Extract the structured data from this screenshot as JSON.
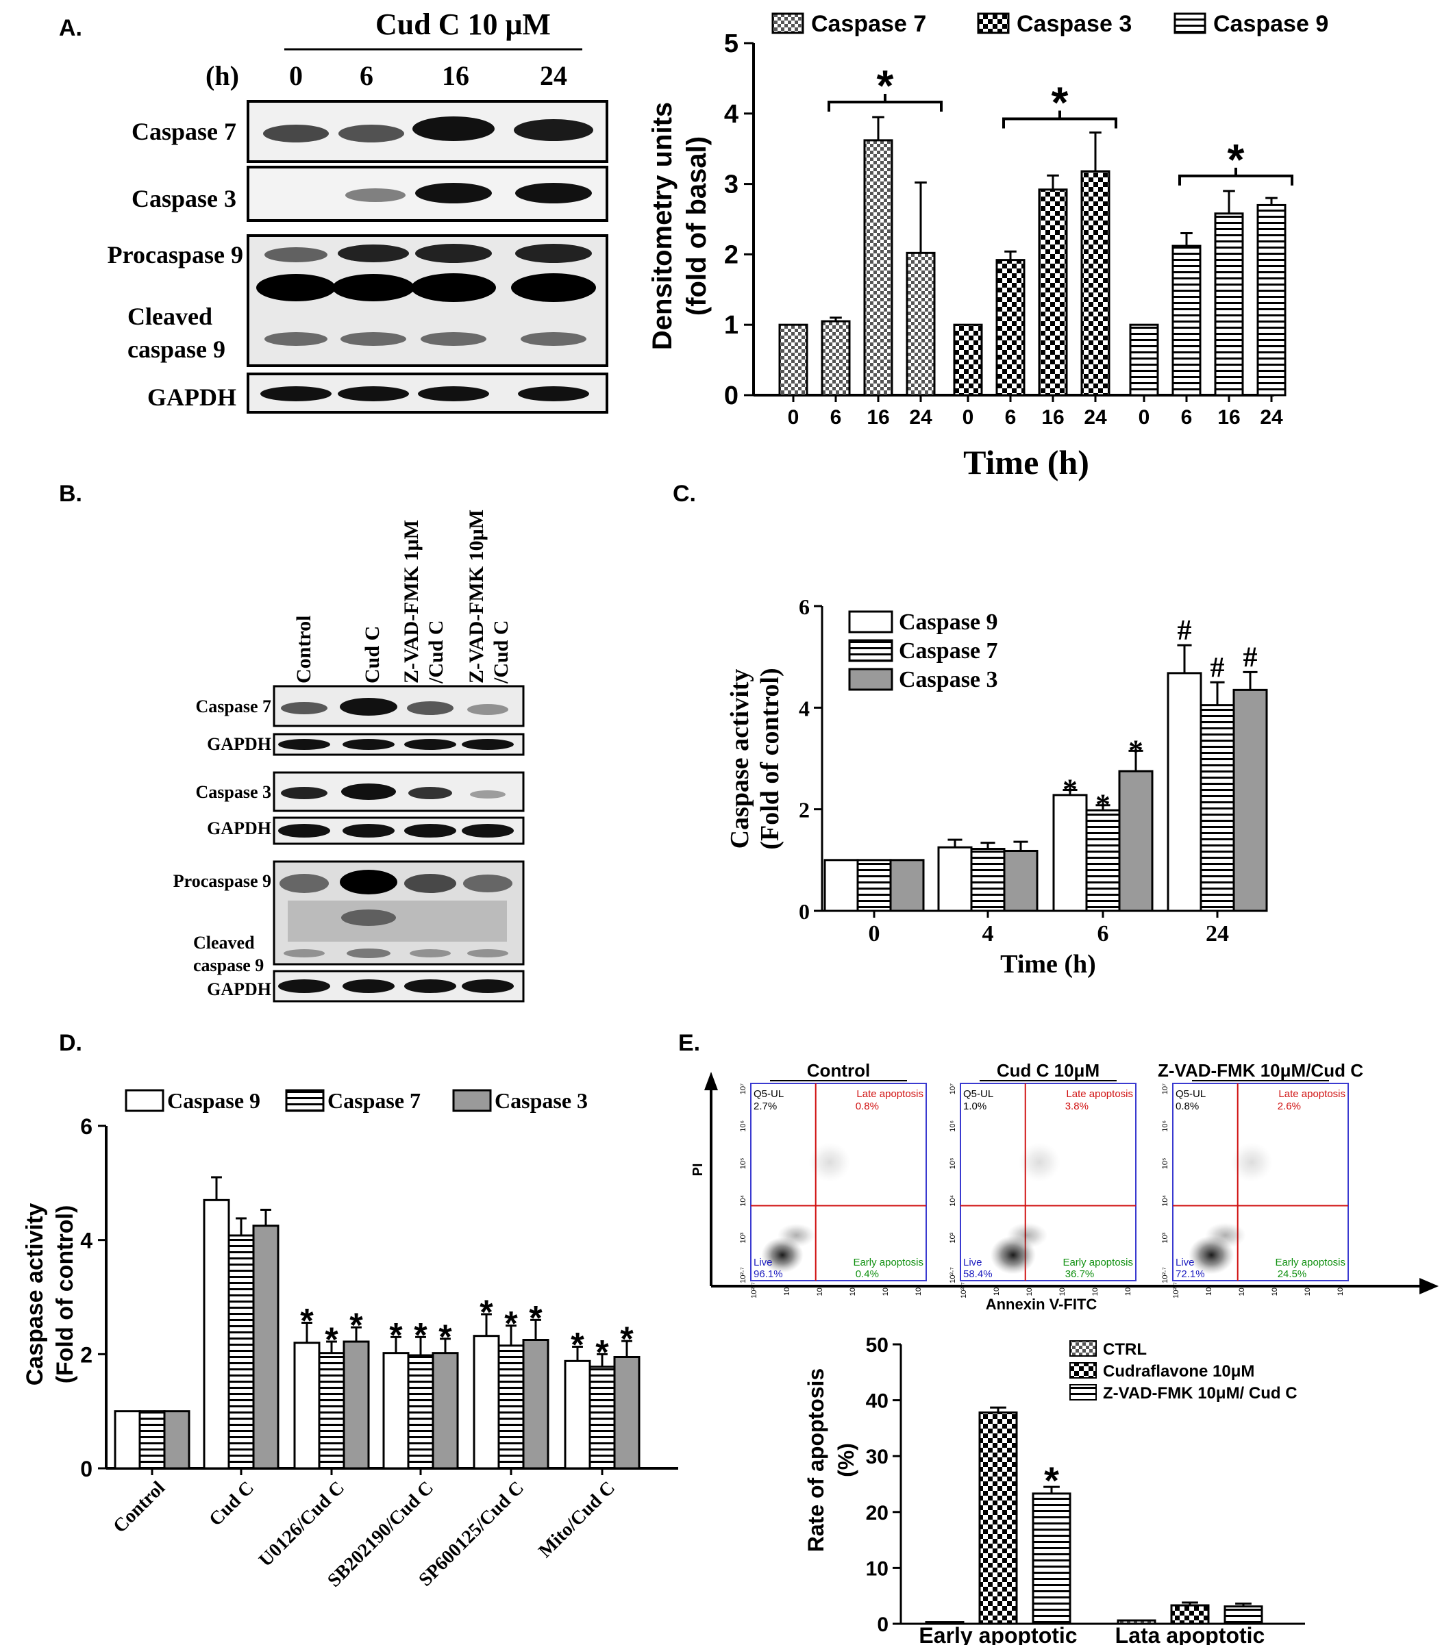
{
  "panels": {
    "a": {
      "label": "A.",
      "treatment": "Cud C 10 μM",
      "time_unit": "(h)",
      "lanes": [
        "0",
        "6",
        "16",
        "24"
      ],
      "rows": [
        "Caspase 7",
        "Caspase 3",
        "Procaspase 9",
        "Cleaved",
        "caspase 9",
        "GAPDH"
      ]
    },
    "b": {
      "label": "B.",
      "lanes": [
        "Control",
        "Cud C",
        "Z-VAD-FMK 1μM",
        "/Cud C",
        "Z-VAD-FMK 10μM",
        "/Cud C"
      ],
      "rows": [
        "Caspase 7",
        "GAPDH",
        "Caspase 3",
        "GAPDH",
        "Procaspase 9",
        "Cleaved",
        "caspase 9",
        "GAPDH"
      ]
    },
    "c": {
      "label": "C."
    },
    "d": {
      "label": "D."
    },
    "e": {
      "label": "E.",
      "flow": {
        "x_axis": "Annexin V-FITC",
        "y_axis": "PI",
        "quadrant_labels": {
          "ul": "Q5-UL",
          "ur": "Late apoptosis",
          "ll": "Live",
          "lr": "Early apoptosis"
        },
        "ticks": [
          "10²·⁷",
          "10³",
          "10⁴",
          "10⁵",
          "10⁶",
          "10⁷"
        ],
        "plots": [
          {
            "title": "Control",
            "ul": "2.7%",
            "ur": "0.8%",
            "ll": "96.1%",
            "lr": "0.4%"
          },
          {
            "title": "Cud C  10μM",
            "ul": "1.0%",
            "ur": "3.8%",
            "ll": "58.4%",
            "lr": "36.7%"
          },
          {
            "title": "Z-VAD-FMK 10μM/Cud C",
            "ul": "0.8%",
            "ur": "2.6%",
            "ll": "72.1%",
            "lr": "24.5%"
          }
        ]
      }
    }
  },
  "chart_data": [
    {
      "id": "A",
      "type": "bar",
      "groups": [
        "Caspase 7",
        "Caspase 3",
        "Caspase 9"
      ],
      "categories": [
        "0",
        "6",
        "16",
        "24"
      ],
      "series": [
        {
          "name": "Caspase 7",
          "values": [
            1.0,
            1.05,
            3.62,
            2.02
          ],
          "errors": [
            0,
            0.05,
            0.33,
            1.0
          ]
        },
        {
          "name": "Caspase 3",
          "values": [
            1.0,
            1.92,
            2.92,
            3.18
          ],
          "errors": [
            0,
            0.12,
            0.2,
            0.55
          ]
        },
        {
          "name": "Caspase 9",
          "values": [
            1.0,
            2.12,
            2.58,
            2.7
          ],
          "errors": [
            0,
            0.18,
            0.32,
            0.1
          ]
        }
      ],
      "significance": [
        "*",
        "*",
        "*"
      ],
      "title": "",
      "xlabel": "Time (h)",
      "ylabel": "Densitometry units",
      "ylabel2": "(fold of basal)",
      "ylim": [
        0,
        5
      ],
      "yticks": [
        "0",
        "1",
        "2",
        "3",
        "4",
        "5"
      ],
      "legend_position": "top"
    },
    {
      "id": "C",
      "type": "bar",
      "categories": [
        "0",
        "4",
        "6",
        "24"
      ],
      "series": [
        {
          "name": "Caspase 9",
          "values": [
            1.0,
            1.25,
            2.28,
            4.68
          ],
          "errors": [
            0,
            0.15,
            0.1,
            0.55
          ],
          "marks": [
            "",
            "",
            "*",
            "#"
          ]
        },
        {
          "name": "Caspase 7",
          "values": [
            1.0,
            1.22,
            1.98,
            4.05
          ],
          "errors": [
            0,
            0.12,
            0.1,
            0.45
          ],
          "marks": [
            "",
            "",
            "*",
            "#"
          ]
        },
        {
          "name": "Caspase 3",
          "values": [
            1.0,
            1.18,
            2.75,
            4.35
          ],
          "errors": [
            0,
            0.18,
            0.4,
            0.35
          ],
          "marks": [
            "",
            "",
            "*",
            "#"
          ]
        }
      ],
      "title": "",
      "xlabel": "Time (h)",
      "ylabel": "Caspase activity",
      "ylabel2": "(Fold of control)",
      "ylim": [
        0,
        6
      ],
      "yticks": [
        "0",
        "2",
        "4",
        "6"
      ],
      "legend_position": "top-left"
    },
    {
      "id": "D",
      "type": "bar",
      "categories": [
        "Control",
        "Cud C",
        "U0126/Cud C",
        "SB202190/Cud C",
        "SP600125/Cud C",
        "Mito/Cud C"
      ],
      "series": [
        {
          "name": "Caspase 9",
          "values": [
            1.0,
            4.7,
            2.2,
            2.02,
            2.32,
            1.88
          ],
          "errors": [
            0,
            0.4,
            0.35,
            0.28,
            0.38,
            0.25
          ]
        },
        {
          "name": "Caspase 7",
          "values": [
            1.0,
            4.08,
            2.02,
            1.98,
            2.15,
            1.78
          ],
          "errors": [
            0,
            0.3,
            0.2,
            0.32,
            0.35,
            0.22
          ]
        },
        {
          "name": "Caspase 3",
          "values": [
            1.0,
            4.25,
            2.22,
            2.02,
            2.25,
            1.95
          ],
          "errors": [
            0,
            0.28,
            0.25,
            0.25,
            0.35,
            0.28
          ]
        }
      ],
      "significance_groups": [
        2,
        3,
        4,
        5
      ],
      "significance_mark": "*",
      "title": "",
      "xlabel": "",
      "ylabel": "Caspase activity",
      "ylabel2": "(Fold of control)",
      "ylim": [
        0,
        6
      ],
      "yticks": [
        "0",
        "2",
        "4",
        "6"
      ],
      "legend_position": "top"
    },
    {
      "id": "E",
      "type": "bar",
      "categories": [
        "Early apoptotic",
        "Lata apoptotic"
      ],
      "series": [
        {
          "name": "CTRL",
          "values": [
            0.3,
            0.6
          ],
          "errors": [
            0,
            0
          ]
        },
        {
          "name": "Cudraflavone 10μM",
          "values": [
            37.8,
            3.3
          ],
          "errors": [
            0.9,
            0.5
          ]
        },
        {
          "name": "Z-VAD-FMK 10μM/ Cud C",
          "values": [
            23.3,
            3.1
          ],
          "errors": [
            1.2,
            0.5
          ]
        }
      ],
      "significance": "*",
      "title": "",
      "xlabel": "",
      "ylabel": "Rate of apoptosis",
      "ylabel2": "(%)",
      "ylim": [
        0,
        50
      ],
      "yticks": [
        "0",
        "10",
        "20",
        "30",
        "40",
        "50"
      ],
      "legend_position": "top-right"
    }
  ]
}
